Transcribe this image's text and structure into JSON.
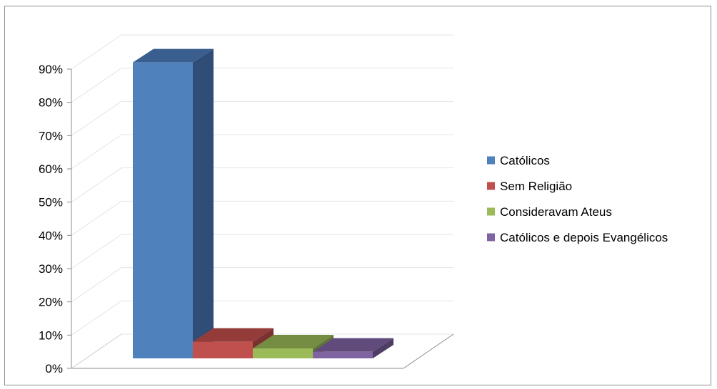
{
  "chart_data": {
    "type": "bar",
    "style": "3d-column",
    "categories": [
      "Católicos",
      "Sem Religião",
      "Consideravam Ateus",
      "Católicos e depois Evangélicos"
    ],
    "values": [
      89,
      5,
      3,
      2
    ],
    "unit": "%",
    "title": "",
    "xlabel": "",
    "ylabel": "",
    "ylim": [
      0,
      90
    ],
    "yticks": [
      "0%",
      "10%",
      "20%",
      "30%",
      "40%",
      "50%",
      "60%",
      "70%",
      "80%",
      "90%"
    ],
    "grid": true,
    "legend_position": "right",
    "colors": {
      "front": [
        "#4F81BD",
        "#C0504D",
        "#9BBB59",
        "#8064A2"
      ],
      "side": [
        "#2F4D76",
        "#7A3230",
        "#5F7437",
        "#4E3D64"
      ],
      "top": [
        "#3A5F8E",
        "#943C3A",
        "#748D42",
        "#614B7C"
      ]
    }
  }
}
